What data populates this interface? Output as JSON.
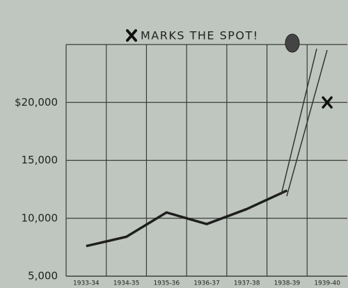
{
  "chart_data": {
    "type": "line",
    "title": "MARKS THE SPOT!",
    "categories": [
      "1933-34",
      "1934-35",
      "1935-36",
      "1936-37",
      "1937-38",
      "1938-39",
      "1939-40"
    ],
    "values": [
      7600,
      8400,
      10500,
      9500,
      10800,
      12400,
      null
    ],
    "color": "#1e1e1e",
    "target": {
      "category_index": 6,
      "value": 20000
    },
    "ylim": [
      5000,
      25000
    ],
    "yticks": [
      {
        "value": 5000,
        "label": "5,000"
      },
      {
        "value": 10000,
        "label": "10,000"
      },
      {
        "value": 15000,
        "label": "15,000"
      },
      {
        "value": 20000,
        "label": "$20,000"
      }
    ],
    "grid": true
  }
}
